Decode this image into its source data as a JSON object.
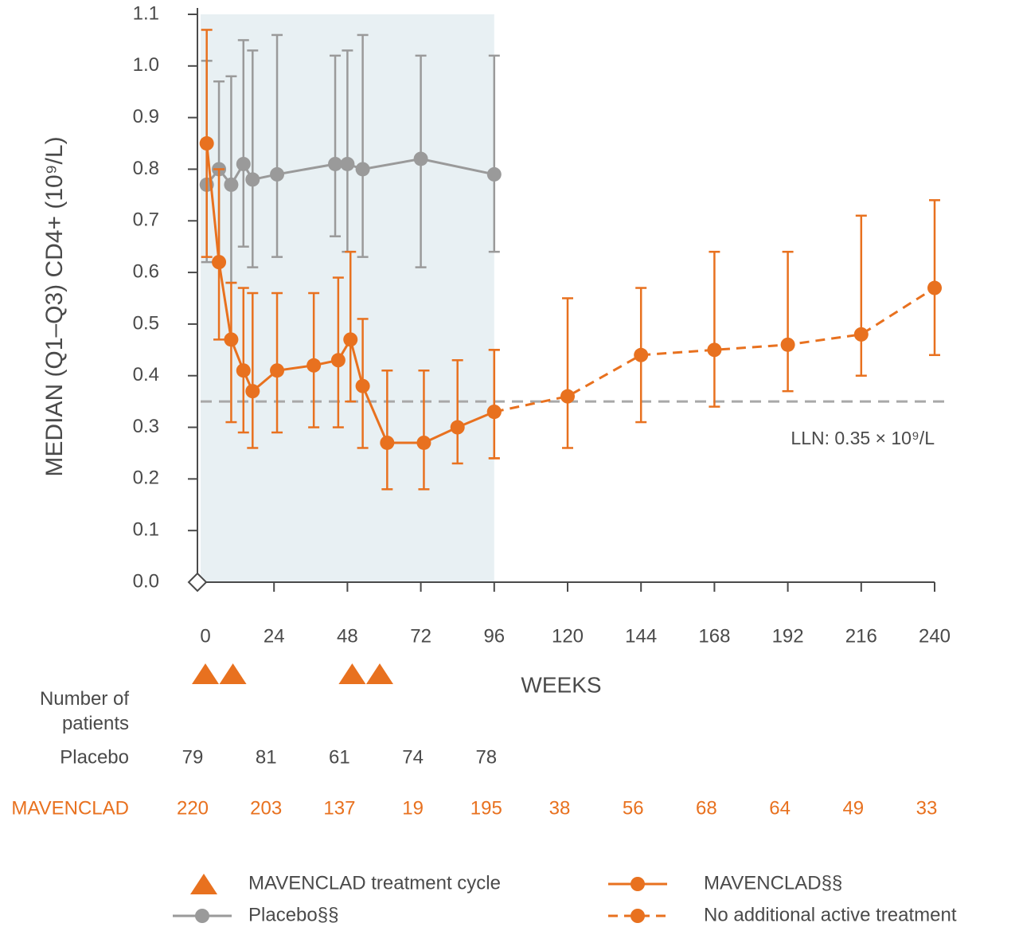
{
  "chart_data": {
    "type": "line",
    "y_label": "MEDIAN (Q1–Q3) CD4+ (10⁹/L)",
    "x_label": "WEEKS",
    "xlim": [
      0,
      240
    ],
    "xticks": [
      0,
      24,
      48,
      72,
      96,
      120,
      144,
      168,
      192,
      216,
      240
    ],
    "ylim": [
      0,
      1.1
    ],
    "yticks": [
      {
        "value": 0,
        "label": "0.0"
      },
      0.1,
      0.2,
      0.3,
      0.4,
      0.5,
      0.6,
      0.7,
      0.8,
      0.9,
      {
        "value": 1,
        "label": "1.0"
      },
      1.1
    ],
    "shade_x": [
      0,
      96
    ],
    "shade_color": "#e8f0f3",
    "lln": {
      "value": 0.35,
      "label": "LLN: 0.35 × 10⁹/L"
    },
    "treatment_cycle": {
      "name": "MAVENCLAD treatment cycle",
      "color": "#e8711f",
      "x": [
        0,
        9,
        48,
        57
      ]
    },
    "series": [
      {
        "name": "Placebo§§",
        "color": "#9a9a9a",
        "dashed": false,
        "x": [
          2,
          6,
          10,
          14,
          17,
          25,
          44,
          48,
          53,
          72,
          96
        ],
        "values": [
          0.77,
          0.8,
          0.77,
          0.81,
          0.78,
          0.79,
          0.81,
          0.81,
          0.8,
          0.82,
          0.79
        ],
        "q1": [
          0.62,
          0.62,
          0.58,
          0.65,
          0.61,
          0.63,
          0.67,
          0.64,
          0.63,
          0.61,
          0.64
        ],
        "q3": [
          1.01,
          0.97,
          0.98,
          1.05,
          1.03,
          1.06,
          1.02,
          1.03,
          1.06,
          1.02,
          1.02
        ]
      },
      {
        "name": "MAVENCLAD§§",
        "color": "#e8711f",
        "dashed": false,
        "x": [
          2,
          6,
          10,
          14,
          17,
          25,
          37,
          45,
          49,
          53,
          61,
          73,
          84,
          96
        ],
        "values": [
          0.85,
          0.62,
          0.47,
          0.41,
          0.37,
          0.41,
          0.42,
          0.43,
          0.47,
          0.38,
          0.27,
          0.27,
          0.3,
          0.33
        ],
        "q1": [
          0.63,
          0.47,
          0.31,
          0.29,
          0.26,
          0.29,
          0.3,
          0.3,
          0.35,
          0.26,
          0.18,
          0.18,
          0.23,
          0.24
        ],
        "q3": [
          1.07,
          0.8,
          0.58,
          0.57,
          0.56,
          0.56,
          0.56,
          0.59,
          0.64,
          0.51,
          0.41,
          0.41,
          0.43,
          0.45
        ]
      },
      {
        "name": "No additional active treatment",
        "color": "#e8711f",
        "dashed": true,
        "x": [
          96,
          120,
          144,
          168,
          192,
          216,
          240
        ],
        "values": [
          0.33,
          0.36,
          0.44,
          0.45,
          0.46,
          0.48,
          0.57
        ],
        "q1": [
          0.24,
          0.26,
          0.31,
          0.34,
          0.37,
          0.4,
          0.44
        ],
        "q3": [
          0.45,
          0.55,
          0.57,
          0.64,
          0.64,
          0.71,
          0.74
        ]
      }
    ],
    "patients_table": {
      "title": "Number of patients",
      "rows": [
        {
          "label": "Placebo",
          "color": "#4a4a4a",
          "counts": [
            79,
            81,
            61,
            74,
            78
          ]
        },
        {
          "label": "MAVENCLAD",
          "color": "#e8711f",
          "counts": [
            220,
            203,
            137,
            19,
            195,
            38,
            56,
            68,
            64,
            49,
            33
          ]
        }
      ]
    }
  }
}
